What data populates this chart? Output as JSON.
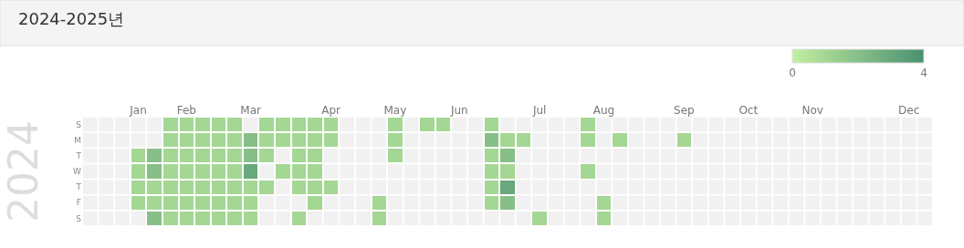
{
  "chart_data": {
    "type": "heatmap",
    "title": "2024-2025년",
    "ylabel": "2024",
    "categories": [
      null,
      null,
      null,
      "Jan",
      null,
      null,
      "Feb",
      null,
      null,
      null,
      "Mar",
      null,
      null,
      null,
      null,
      "Apr",
      null,
      null,
      null,
      "May",
      null,
      null,
      null,
      "Jun",
      null,
      null,
      null,
      null,
      "Jul",
      null,
      null,
      null,
      "Aug",
      null,
      null,
      null,
      null,
      "Sep",
      null,
      null,
      null,
      "Oct",
      null,
      null,
      null,
      "Nov",
      null,
      null,
      null,
      null,
      null,
      "Dec",
      null
    ],
    "y_categories": [
      "S",
      "M",
      "T",
      "W",
      "T",
      "F",
      "S"
    ],
    "cells": [
      [
        null,
        null,
        null,
        null,
        null,
        1,
        1,
        1,
        1,
        1,
        null,
        1,
        1,
        1,
        1,
        1,
        null,
        null,
        null,
        1,
        null,
        1,
        1,
        null,
        null,
        1,
        null,
        null,
        null,
        null,
        null,
        1,
        null,
        null,
        null,
        null,
        null,
        null,
        null,
        null,
        null,
        null,
        null,
        null,
        null,
        null,
        null,
        null,
        null,
        null,
        null,
        null,
        null
      ],
      [
        null,
        null,
        null,
        null,
        null,
        1,
        1,
        1,
        1,
        1,
        2,
        1,
        1,
        1,
        1,
        1,
        null,
        null,
        null,
        1,
        null,
        null,
        null,
        null,
        null,
        2,
        1,
        1,
        null,
        null,
        null,
        1,
        null,
        1,
        null,
        null,
        null,
        1,
        null,
        null,
        null,
        null,
        null,
        null,
        null,
        null,
        null,
        null,
        null,
        null,
        null,
        null,
        null
      ],
      [
        null,
        null,
        null,
        1,
        2,
        1,
        1,
        1,
        1,
        1,
        2,
        1,
        null,
        1,
        1,
        null,
        null,
        null,
        null,
        1,
        null,
        null,
        null,
        null,
        null,
        1,
        2,
        null,
        null,
        null,
        null,
        null,
        null,
        null,
        null,
        null,
        null,
        null,
        null,
        null,
        null,
        null,
        null,
        null,
        null,
        null,
        null,
        null,
        null,
        null,
        null,
        null,
        null
      ],
      [
        null,
        null,
        null,
        1,
        2,
        1,
        1,
        1,
        1,
        1,
        3,
        null,
        1,
        1,
        1,
        null,
        null,
        null,
        null,
        null,
        null,
        null,
        null,
        null,
        null,
        1,
        1,
        null,
        null,
        null,
        null,
        1,
        null,
        null,
        null,
        null,
        null,
        null,
        null,
        null,
        null,
        null,
        null,
        null,
        null,
        null,
        null,
        null,
        null,
        null,
        null,
        null,
        null
      ],
      [
        null,
        null,
        null,
        1,
        1,
        1,
        1,
        1,
        1,
        1,
        1,
        1,
        null,
        1,
        1,
        1,
        null,
        null,
        null,
        null,
        null,
        null,
        null,
        null,
        null,
        1,
        3,
        null,
        null,
        null,
        null,
        null,
        null,
        null,
        null,
        null,
        null,
        null,
        null,
        null,
        null,
        null,
        null,
        null,
        null,
        null,
        null,
        null,
        null,
        null,
        null,
        null,
        null
      ],
      [
        null,
        null,
        null,
        1,
        1,
        1,
        1,
        1,
        1,
        1,
        1,
        null,
        null,
        null,
        1,
        null,
        null,
        null,
        1,
        null,
        null,
        null,
        null,
        null,
        null,
        1,
        2,
        null,
        null,
        null,
        null,
        null,
        1,
        null,
        null,
        null,
        null,
        null,
        null,
        null,
        null,
        null,
        null,
        null,
        null,
        null,
        null,
        null,
        null,
        null,
        null,
        null,
        null
      ],
      [
        null,
        null,
        null,
        null,
        2,
        1,
        1,
        1,
        1,
        1,
        1,
        null,
        null,
        1,
        null,
        null,
        null,
        null,
        1,
        null,
        null,
        null,
        null,
        null,
        null,
        null,
        null,
        null,
        1,
        null,
        null,
        null,
        1,
        null,
        null,
        null,
        null,
        null,
        null,
        null,
        null,
        null,
        null,
        null,
        null,
        null,
        null,
        null,
        null,
        null,
        null,
        null,
        null
      ]
    ],
    "clim": [
      0,
      4
    ],
    "cticks": [
      0,
      4
    ]
  }
}
